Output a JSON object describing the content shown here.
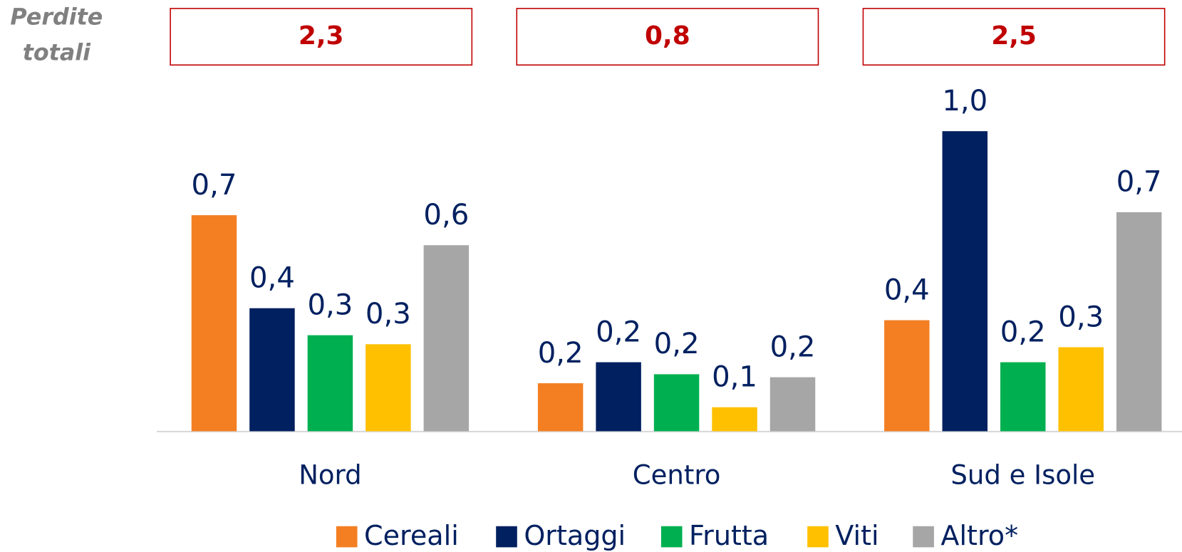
{
  "chart_data": {
    "type": "bar",
    "totals_title": [
      "Perdite",
      "totali"
    ],
    "totals": [
      2.3,
      0.8,
      2.5
    ],
    "totals_labels": [
      "2,3",
      "0,8",
      "2,5"
    ],
    "categories": [
      "Nord",
      "Centro",
      "Sud e Isole"
    ],
    "ylim": [
      0,
      1.1
    ],
    "legend": "bottom",
    "series": [
      {
        "name": "Cereali",
        "color": "#f37f22",
        "values": [
          0.72,
          0.16,
          0.37
        ],
        "value_labels": [
          "0,7",
          "0,2",
          "0,4"
        ]
      },
      {
        "name": "Ortaggi",
        "color": "#002060",
        "values": [
          0.41,
          0.23,
          1.0
        ],
        "value_labels": [
          "0,4",
          "0,2",
          "1,0"
        ]
      },
      {
        "name": "Frutta",
        "color": "#00b050",
        "values": [
          0.32,
          0.19,
          0.23
        ],
        "value_labels": [
          "0,3",
          "0,2",
          "0,2"
        ]
      },
      {
        "name": "Viti",
        "color": "#ffc000",
        "values": [
          0.29,
          0.08,
          0.28
        ],
        "value_labels": [
          "0,3",
          "0,1",
          "0,3"
        ]
      },
      {
        "name": "Altro*",
        "color": "#a6a6a6",
        "values": [
          0.62,
          0.18,
          0.73
        ],
        "value_labels": [
          "0,6",
          "0,2",
          "0,7"
        ]
      }
    ]
  }
}
